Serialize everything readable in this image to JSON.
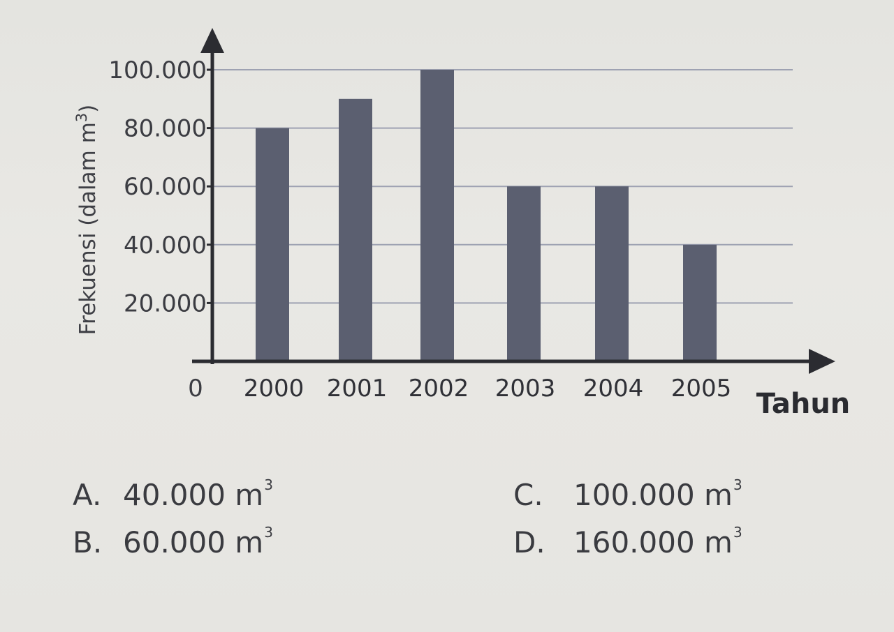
{
  "chart_data": {
    "type": "bar",
    "categories": [
      "2000",
      "2001",
      "2002",
      "2003",
      "2004",
      "2005"
    ],
    "values": [
      80000,
      90000,
      100000,
      60000,
      60000,
      40000
    ],
    "yticks": [
      20000,
      40000,
      60000,
      80000,
      100000
    ],
    "ytick_labels": [
      "20.000",
      "40.000",
      "60.000",
      "80.000",
      "100.000"
    ],
    "origin_label": "0",
    "ylim": [
      0,
      100000
    ],
    "xlabel": "Tahun",
    "ylabel": "Frekuensi (dalam m3)",
    "ylabel_main": "Frekuensi (dalam m",
    "ylabel_sup": "3",
    "ylabel_end": ")",
    "grid": true,
    "bar_color": "#5b5f70"
  },
  "options": {
    "a": {
      "letter": "A.",
      "value": "40.000 m",
      "unit_power": "3"
    },
    "b": {
      "letter": "B.",
      "value": "60.000 m",
      "unit_power": "3"
    },
    "c": {
      "letter": "C.",
      "value": "100.000 m",
      "unit_power": "3"
    },
    "d": {
      "letter": "D.",
      "value": "160.000 m",
      "unit_power": "3"
    }
  }
}
